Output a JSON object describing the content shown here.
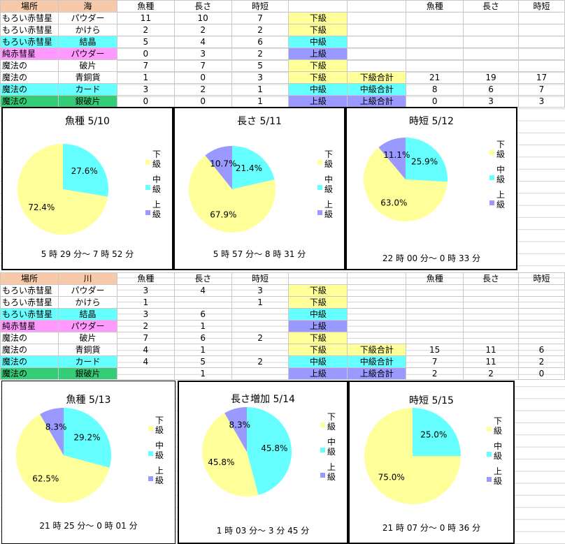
{
  "table1": {
    "header": [
      "場所",
      "海",
      "魚種",
      "長さ",
      "時短",
      "",
      "",
      "魚種",
      "長さ",
      "時短"
    ],
    "rows": [
      {
        "place": "もろい赤彗星",
        "bait": "パウダー",
        "a": "11",
        "b": "10",
        "c": "7",
        "grade": "下級",
        "sum": "",
        "sa": "",
        "sb": "",
        "sc": "",
        "pc": "bg-w",
        "gc": "bg-y"
      },
      {
        "place": "もろい赤彗星",
        "bait": "かけら",
        "a": "2",
        "b": "2",
        "c": "2",
        "grade": "下級",
        "sum": "",
        "sa": "",
        "sb": "",
        "sc": "",
        "pc": "bg-w",
        "gc": "bg-y"
      },
      {
        "place": "もろい赤彗星",
        "bait": "結晶",
        "a": "5",
        "b": "4",
        "c": "6",
        "grade": "中級",
        "sum": "",
        "sa": "",
        "sb": "",
        "sc": "",
        "pc": "bg-c",
        "gc": "bg-c"
      },
      {
        "place": "純赤彗星",
        "bait": "パウダー",
        "a": "0",
        "b": "3",
        "c": "2",
        "grade": "上級",
        "sum": "",
        "sa": "",
        "sb": "",
        "sc": "",
        "pc": "bg-p",
        "gc": "bg-b"
      },
      {
        "place": "魔法の",
        "bait": "破片",
        "a": "7",
        "b": "7",
        "c": "5",
        "grade": "下級",
        "sum": "",
        "sa": "",
        "sb": "",
        "sc": "",
        "pc": "bg-w",
        "gc": "bg-y"
      },
      {
        "place": "魔法の",
        "bait": "青銅貨",
        "a": "1",
        "b": "0",
        "c": "3",
        "grade": "下級",
        "sum": "下級合計",
        "sa": "21",
        "sb": "19",
        "sc": "17",
        "pc": "bg-w",
        "gc": "bg-y"
      },
      {
        "place": "魔法の",
        "bait": "カード",
        "a": "3",
        "b": "2",
        "c": "1",
        "grade": "中級",
        "sum": "中級合計",
        "sa": "8",
        "sb": "6",
        "sc": "7",
        "pc": "bg-c",
        "gc": "bg-c"
      },
      {
        "place": "魔法の",
        "bait": "銀破片",
        "a": "0",
        "b": "0",
        "c": "1",
        "grade": "上級",
        "sum": "上級合計",
        "sa": "0",
        "sb": "3",
        "sc": "3",
        "pc": "bg-g",
        "gc": "bg-b"
      }
    ]
  },
  "table2": {
    "header": [
      "場所",
      "川",
      "魚種",
      "長さ",
      "時短",
      "",
      "",
      "魚種",
      "長さ",
      "時短"
    ],
    "rows": [
      {
        "place": "もろい赤彗星",
        "bait": "パウダー",
        "a": "3",
        "b": "4",
        "c": "3",
        "grade": "下級",
        "sum": "",
        "sa": "",
        "sb": "",
        "sc": "",
        "pc": "bg-w",
        "gc": "bg-y"
      },
      {
        "place": "もろい赤彗星",
        "bait": "かけら",
        "a": "1",
        "b": "",
        "c": "1",
        "grade": "下級",
        "sum": "",
        "sa": "",
        "sb": "",
        "sc": "",
        "pc": "bg-w",
        "gc": "bg-y"
      },
      {
        "place": "もろい赤彗星",
        "bait": "結晶",
        "a": "3",
        "b": "6",
        "c": "",
        "grade": "中級",
        "sum": "",
        "sa": "",
        "sb": "",
        "sc": "",
        "pc": "bg-c",
        "gc": "bg-c"
      },
      {
        "place": "純赤彗星",
        "bait": "パウダー",
        "a": "2",
        "b": "1",
        "c": "",
        "grade": "上級",
        "sum": "",
        "sa": "",
        "sb": "",
        "sc": "",
        "pc": "bg-p",
        "gc": "bg-b"
      },
      {
        "place": "魔法の",
        "bait": "破片",
        "a": "7",
        "b": "6",
        "c": "2",
        "grade": "下級",
        "sum": "",
        "sa": "",
        "sb": "",
        "sc": "",
        "pc": "bg-w",
        "gc": "bg-y"
      },
      {
        "place": "魔法の",
        "bait": "青銅貨",
        "a": "4",
        "b": "1",
        "c": "",
        "grade": "下級",
        "sum": "下級合計",
        "sa": "15",
        "sb": "11",
        "sc": "6",
        "pc": "bg-w",
        "gc": "bg-y"
      },
      {
        "place": "魔法の",
        "bait": "カード",
        "a": "4",
        "b": "5",
        "c": "2",
        "grade": "中級",
        "sum": "中級合計",
        "sa": "7",
        "sb": "11",
        "sc": "2",
        "pc": "bg-c",
        "gc": "bg-c"
      },
      {
        "place": "魔法の",
        "bait": "銀破片",
        "a": "",
        "b": "1",
        "c": "",
        "grade": "上級",
        "sum": "上級合計",
        "sa": "2",
        "sb": "2",
        "sc": "0",
        "pc": "bg-g",
        "gc": "bg-b"
      }
    ]
  },
  "legend": [
    "下級",
    "中級",
    "上級"
  ],
  "colors": {
    "low": "#ffff99",
    "mid": "#66ffff",
    "high": "#9999ff"
  },
  "chart_data": [
    {
      "type": "pie",
      "title": "魚種 5/10",
      "time": "5 時 29 分～ 7 時 52 分",
      "categories": [
        "下級",
        "中級",
        "上級"
      ],
      "values": [
        72.4,
        27.6,
        0
      ],
      "labels": [
        "72.4%",
        "27.6%",
        ""
      ]
    },
    {
      "type": "pie",
      "title": "長さ 5/11",
      "time": "5 時 57 分～ 8 時 31 分",
      "categories": [
        "下級",
        "中級",
        "上級"
      ],
      "values": [
        67.9,
        21.4,
        10.7
      ],
      "labels": [
        "67.9%",
        "21.4%",
        "10.7%"
      ]
    },
    {
      "type": "pie",
      "title": "時短 5/12",
      "time": "22 時 00 分～ 0 時 33 分",
      "categories": [
        "下級",
        "中級",
        "上級"
      ],
      "values": [
        63.0,
        25.9,
        11.1
      ],
      "labels": [
        "63.0%",
        "25.9%",
        "11.1%"
      ]
    },
    {
      "type": "pie",
      "title": "魚種 5/13",
      "time": "21 時 25 分～ 0 時 01 分",
      "categories": [
        "下級",
        "中級",
        "上級"
      ],
      "values": [
        62.5,
        29.2,
        8.3
      ],
      "labels": [
        "62.5%",
        "29.2%",
        "8.3%"
      ]
    },
    {
      "type": "pie",
      "title": "長さ増加 5/14",
      "time": "1 時 03 分～ 3 分 45 分",
      "categories": [
        "下級",
        "中級",
        "上級"
      ],
      "values": [
        45.8,
        45.8,
        8.3
      ],
      "labels": [
        "45.8%",
        "45.8%",
        "8.3%"
      ]
    },
    {
      "type": "pie",
      "title": "時短 5/15",
      "time": "21 時 07 分～ 0 時 36 分",
      "categories": [
        "下級",
        "中級",
        "上級"
      ],
      "values": [
        75.0,
        25.0,
        0
      ],
      "labels": [
        "75.0%",
        "25.0%",
        ""
      ]
    }
  ]
}
